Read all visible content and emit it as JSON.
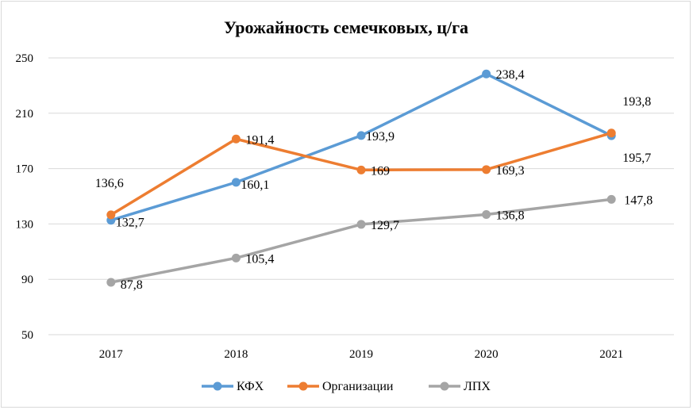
{
  "chart_data": {
    "type": "line",
    "title": "Урожайность семечковых, ц/га",
    "xlabel": "",
    "ylabel": "",
    "categories": [
      "2017",
      "2018",
      "2019",
      "2020",
      "2021"
    ],
    "ylim": [
      50,
      250
    ],
    "yticks": [
      "50",
      "90",
      "130",
      "170",
      "210",
      "250"
    ],
    "ytick_values": [
      50,
      90,
      130,
      170,
      210,
      250
    ],
    "grid": true,
    "legend_position": "bottom",
    "series": [
      {
        "name": "КФХ",
        "color": "#5b9bd5",
        "values": [
          132.7,
          160.1,
          193.9,
          238.4,
          193.8
        ],
        "labels": [
          "132,7",
          "160,1",
          "193,9",
          "238,4",
          "193,8"
        ]
      },
      {
        "name": "Организации",
        "color": "#ed7d31",
        "values": [
          136.6,
          191.4,
          169,
          169.3,
          195.7
        ],
        "labels": [
          "136,6",
          "191,4",
          "169",
          "169,3",
          "195,7"
        ]
      },
      {
        "name": "ЛПХ",
        "color": "#a5a5a5",
        "values": [
          87.8,
          105.4,
          129.7,
          136.8,
          147.8
        ],
        "labels": [
          "87,8",
          "105,4",
          "129,7",
          "136,8",
          "147,8"
        ]
      }
    ]
  }
}
